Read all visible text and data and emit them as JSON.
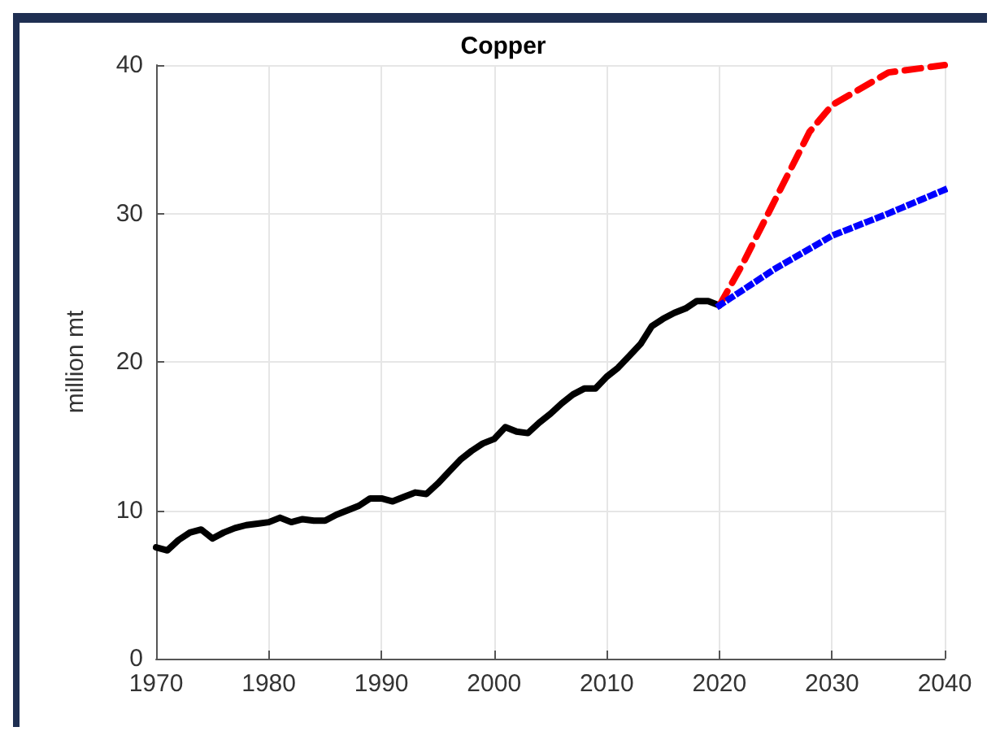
{
  "chart_data": {
    "type": "line",
    "title": "Copper",
    "ylabel": "million mt",
    "xlim": [
      1970,
      2040
    ],
    "xticks": [
      1970,
      1980,
      1990,
      2000,
      2010,
      2020,
      2030,
      2040
    ],
    "ylim": [
      0,
      40
    ],
    "yticks": [
      0,
      10,
      20,
      30,
      40
    ],
    "grid": true,
    "marker": "none",
    "series": [
      {
        "color": "#000000",
        "line_style": "solid",
        "x": [
          1970,
          1971,
          1972,
          1973,
          1974,
          1975,
          1976,
          1977,
          1978,
          1979,
          1980,
          1981,
          1982,
          1983,
          1984,
          1985,
          1986,
          1987,
          1988,
          1989,
          1990,
          1991,
          1992,
          1993,
          1994,
          1995,
          1996,
          1997,
          1998,
          1999,
          2000,
          2001,
          2002,
          2003,
          2004,
          2005,
          2006,
          2007,
          2008,
          2009,
          2010,
          2011,
          2012,
          2013,
          2014,
          2015,
          2016,
          2017,
          2018,
          2019,
          2020
        ],
        "values": [
          7.5,
          7.3,
          8.0,
          8.5,
          8.7,
          8.1,
          8.5,
          8.8,
          9.0,
          9.1,
          9.2,
          9.5,
          9.2,
          9.4,
          9.3,
          9.3,
          9.7,
          10.0,
          10.3,
          10.8,
          10.8,
          10.6,
          10.9,
          11.2,
          11.1,
          11.8,
          12.6,
          13.4,
          14.0,
          14.5,
          14.8,
          15.6,
          15.3,
          15.2,
          15.9,
          16.5,
          17.2,
          17.8,
          18.2,
          18.2,
          19.0,
          19.6,
          20.4,
          21.2,
          22.4,
          22.9,
          23.3,
          23.6,
          24.1,
          24.1,
          23.8
        ]
      },
      {
        "color": "#ff0000",
        "line_style": "dashed",
        "x": [
          2020,
          2022,
          2025,
          2028,
          2030,
          2035,
          2040
        ],
        "values": [
          23.8,
          26.5,
          31,
          35.5,
          37.3,
          39.5,
          40
        ]
      },
      {
        "color": "#0000ff",
        "line_style": "dotted",
        "x": [
          2020,
          2025,
          2030,
          2035,
          2040
        ],
        "values": [
          23.8,
          26.3,
          28.5,
          30,
          31.6
        ]
      }
    ]
  }
}
